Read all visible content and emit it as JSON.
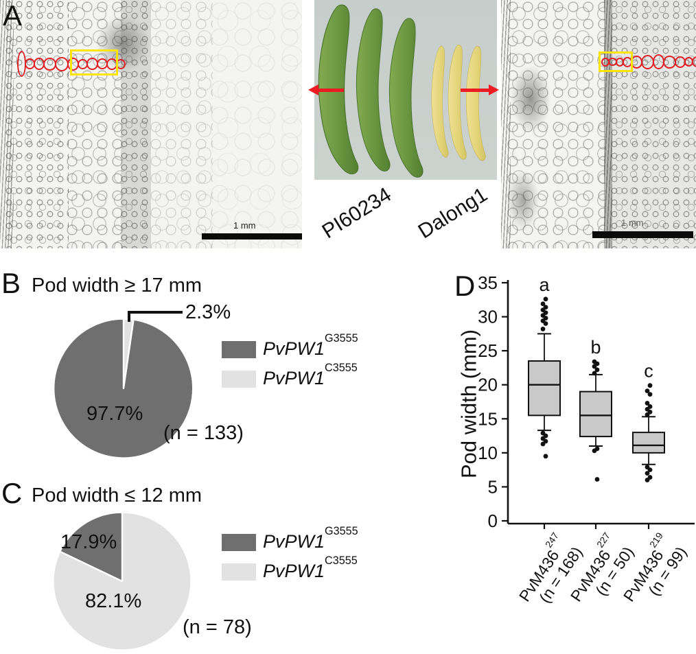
{
  "figure": {
    "panel_a": {
      "label": "A",
      "left_micrograph": {
        "scale_bar": "1 mm"
      },
      "right_micrograph": {
        "scale_bar": "1 mm"
      },
      "cultivar_left": "PI60234",
      "cultivar_right": "Dalong1"
    },
    "panel_b": {
      "label": "B",
      "title": "Pod width ≥ 17 mm",
      "major_pct": "97.7%",
      "minor_pct": "2.3%",
      "n_label": "(n = 133)"
    },
    "panel_c": {
      "label": "C",
      "title": "Pod width ≤ 12 mm",
      "dark_pct": "17.9%",
      "light_pct": "82.1%",
      "n_label": "(n = 78)"
    },
    "panel_d": {
      "label": "D"
    },
    "legend": {
      "dark": {
        "base": "PvPW1",
        "sup": "G3555"
      },
      "light": {
        "base": "PvPW1",
        "sup": "C3555"
      }
    },
    "colors": {
      "dark_gray": "#6f6f6f",
      "light_gray": "#e2e2e2",
      "box_fill": "#c9c9c9",
      "red": "#ed1c24",
      "yellow": "#ffe400"
    }
  },
  "chart_data": [
    {
      "type": "pie",
      "panel": "B",
      "title": "Pod width ≥ 17 mm",
      "n": 133,
      "start": "12 o'clock",
      "direction": "clockwise",
      "slices": [
        {
          "label": "PvPW1 C3555",
          "value": 2.3,
          "color": "#e2e2e2"
        },
        {
          "label": "PvPW1 G3555",
          "value": 97.7,
          "color": "#6f6f6f"
        }
      ]
    },
    {
      "type": "pie",
      "panel": "C",
      "title": "Pod width ≤ 12 mm",
      "n": 78,
      "start": "12 o'clock",
      "direction": "clockwise",
      "slices": [
        {
          "label": "PvPW1 C3555",
          "value": 82.1,
          "color": "#e2e2e2"
        },
        {
          "label": "PvPW1 G3555",
          "value": 17.9,
          "color": "#6f6f6f"
        }
      ]
    },
    {
      "type": "boxplot",
      "panel": "D",
      "ylabel": "Pod width (mm)",
      "ylim": [
        0,
        35
      ],
      "yticks": [
        0,
        5,
        10,
        15,
        20,
        25,
        30,
        35
      ],
      "groups": [
        {
          "label_base": "PvM436",
          "label_sup": "247",
          "n_label": "(n = 168)",
          "letter": "a",
          "whisker_low": 13.3,
          "q1": 15.5,
          "median": 20.0,
          "q3": 23.5,
          "whisker_high": 27.5,
          "outliers_high": [
            28.2,
            29.0,
            29.4,
            29.8,
            30.2,
            30.6,
            31.0,
            31.4,
            31.9,
            32.6
          ],
          "outliers_low": [
            12.9,
            12.5,
            12.1,
            11.7,
            11.3,
            9.5
          ]
        },
        {
          "label_base": "PvM436",
          "label_sup": "227",
          "n_label": "(n = 50)",
          "letter": "b",
          "whisker_low": 11.0,
          "q1": 12.4,
          "median": 15.5,
          "q3": 19.0,
          "whisker_high": 21.5,
          "outliers_high": [
            21.7,
            22.2,
            22.7,
            23.1,
            23.4
          ],
          "outliers_low": [
            10.6,
            10.3,
            6.1
          ]
        },
        {
          "label_base": "PvM436",
          "label_sup": "219",
          "n_label": "(n = 99)",
          "letter": "c",
          "whisker_low": 8.3,
          "q1": 10.0,
          "median": 11.1,
          "q3": 13.0,
          "whisker_high": 15.3,
          "outliers_high": [
            15.6,
            16.0,
            16.4,
            16.8,
            17.3,
            18.6,
            19.1,
            19.9
          ],
          "outliers_low": [
            7.9,
            7.5,
            7.0,
            6.4,
            6.0
          ]
        }
      ]
    }
  ]
}
